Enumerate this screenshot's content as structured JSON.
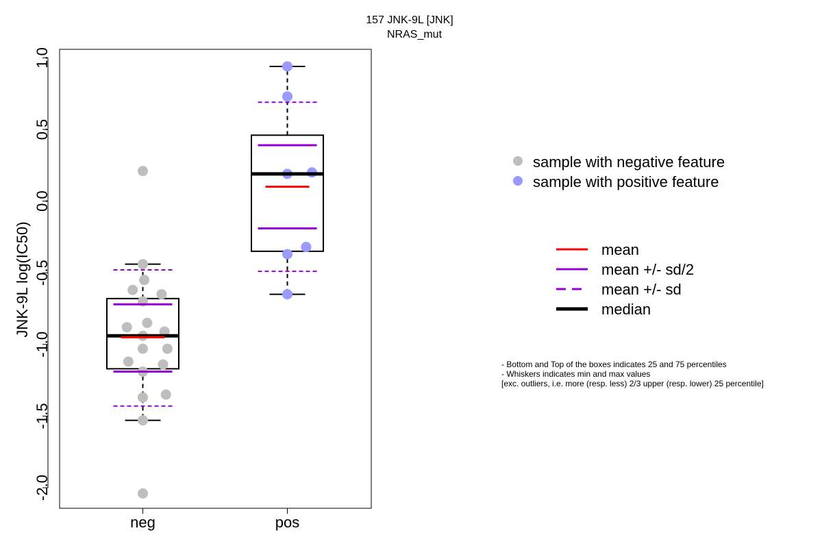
{
  "chart_data": {
    "type": "box",
    "title": "157 JNK-9L [JNK]",
    "subtitle": "NRAS_mut",
    "ylabel": "JNK-9L log(IC50)",
    "xlabel": "",
    "ylim": [
      -2.15,
      1.05
    ],
    "yticks": [
      1.0,
      0.5,
      0.0,
      -0.5,
      -1.0,
      -1.5,
      -2.0
    ],
    "ytick_labels": [
      "1.0",
      "0.5",
      "0.0",
      "-0.5",
      "-1.0",
      "-1.5",
      "-2.0"
    ],
    "grid": false,
    "categories": [
      "neg",
      "pos"
    ],
    "groups": [
      {
        "category": "neg",
        "color": "#bebebe",
        "box": {
          "q1": -1.17,
          "median": -0.94,
          "q3": -0.68,
          "whisker_low": -1.53,
          "whisker_high": -0.44
        },
        "mean": -0.95,
        "mean_minus_sd_half": -1.19,
        "mean_plus_sd_half": -0.72,
        "mean_minus_sd": -1.43,
        "mean_plus_sd": -0.48,
        "points": [
          {
            "x": 0.0,
            "y": 0.21
          },
          {
            "x": 0.0,
            "y": -0.44
          },
          {
            "x": 0.01,
            "y": -0.55
          },
          {
            "x": -0.07,
            "y": -0.62
          },
          {
            "x": 0.13,
            "y": -0.65
          },
          {
            "x": 0.0,
            "y": -0.7
          },
          {
            "x": 0.03,
            "y": -0.85
          },
          {
            "x": -0.11,
            "y": -0.88
          },
          {
            "x": 0.15,
            "y": -0.91
          },
          {
            "x": 0.0,
            "y": -0.94
          },
          {
            "x": 0.0,
            "y": -1.03
          },
          {
            "x": 0.17,
            "y": -1.03
          },
          {
            "x": -0.1,
            "y": -1.12
          },
          {
            "x": 0.14,
            "y": -1.14
          },
          {
            "x": 0.0,
            "y": -1.19
          },
          {
            "x": 0.16,
            "y": -1.35
          },
          {
            "x": 0.0,
            "y": -1.37
          },
          {
            "x": 0.0,
            "y": -1.53
          },
          {
            "x": 0.0,
            "y": -2.04
          }
        ]
      },
      {
        "category": "pos",
        "color": "#9999ff",
        "box": {
          "q1": -0.35,
          "median": 0.19,
          "q3": 0.46,
          "whisker_low": -0.65,
          "whisker_high": 0.94
        },
        "mean": 0.1,
        "mean_minus_sd_half": -0.19,
        "mean_plus_sd_half": 0.39,
        "mean_minus_sd": -0.49,
        "mean_plus_sd": 0.69,
        "points": [
          {
            "x": 0.0,
            "y": 0.94
          },
          {
            "x": 0.0,
            "y": 0.73
          },
          {
            "x": 0.0,
            "y": 0.19
          },
          {
            "x": 0.17,
            "y": 0.2
          },
          {
            "x": 0.13,
            "y": -0.32
          },
          {
            "x": 0.0,
            "y": -0.37
          },
          {
            "x": 0.0,
            "y": -0.65
          }
        ]
      }
    ],
    "legend_points": [
      {
        "label": "sample with negative feature",
        "color": "#bebebe"
      },
      {
        "label": "sample with positive feature",
        "color": "#9999ff"
      }
    ],
    "legend_lines": [
      {
        "label": "mean",
        "color": "#ff0000",
        "style": "solid"
      },
      {
        "label": "mean +/- sd/2",
        "color": "#9400d3",
        "style": "solid"
      },
      {
        "label": "mean +/- sd",
        "color": "#9400d3",
        "style": "dashed"
      },
      {
        "label": "median",
        "color": "#000000",
        "style": "solid-thick"
      }
    ],
    "notes": [
      "- Bottom and Top of the boxes indicates 25 and 75 percentiles",
      "- Whiskers indicates min and max values",
      "[exc. outliers, i.e. more (resp. less) 2/3 upper (resp. lower) 25 percentile]"
    ]
  }
}
